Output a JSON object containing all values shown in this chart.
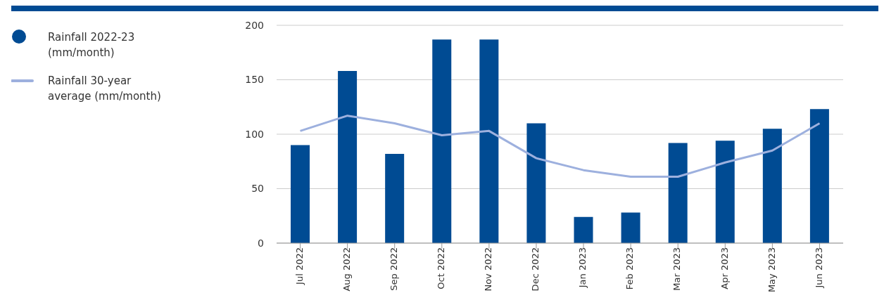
{
  "chart_data": {
    "type": "bar",
    "categories": [
      "Jul 2022",
      "Aug 2022",
      "Sep 2022",
      "Oct 2022",
      "Nov 2022",
      "Dec 2022",
      "Jan 2023",
      "Feb 2023",
      "Mar 2023",
      "Apr 2023",
      "May 2023",
      "Jun 2023"
    ],
    "series": [
      {
        "name": "Rainfall 2022-23 (mm/month)",
        "color": "#004b93",
        "values": [
          90,
          158,
          82,
          187,
          187,
          110,
          24,
          28,
          92,
          94,
          105,
          123
        ]
      },
      {
        "type": "line",
        "name": "Rainfall 30-year average (mm/month)",
        "color": "#9db0de",
        "values": [
          103,
          117,
          110,
          99,
          103,
          78,
          67,
          61,
          61,
          74,
          85,
          110
        ]
      }
    ],
    "ylim": [
      0,
      200
    ],
    "yticks": [
      0,
      50,
      100,
      150,
      200
    ],
    "grid": "y",
    "legend": "left",
    "marker": "none",
    "line_style": "solid"
  }
}
